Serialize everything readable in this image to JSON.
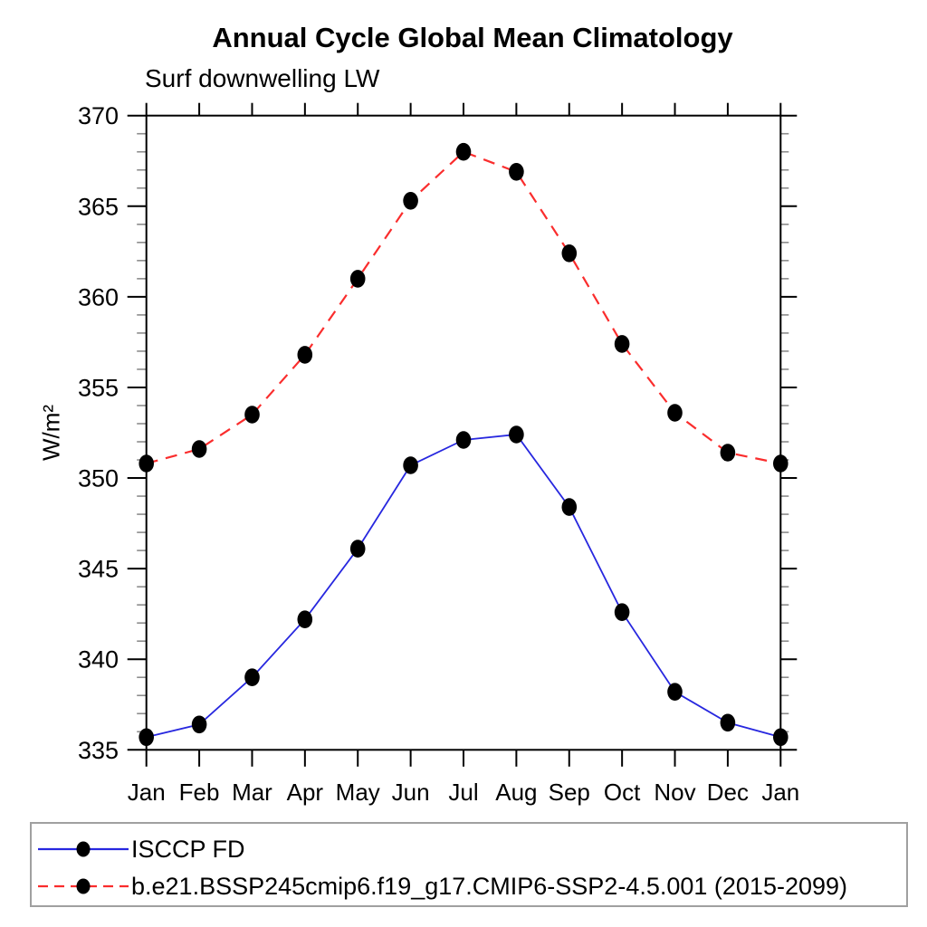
{
  "title": "Annual Cycle Global Mean Climatology",
  "subtitle": "Surf downwelling LW",
  "y_axis_title": "W/m²",
  "legend": {
    "items": [
      {
        "label": "ISCCP FD",
        "color": "#2727df",
        "dashed": false,
        "marker_color": "#000000"
      },
      {
        "label": "b.e21.BSSP245cmip6.f19_g17.CMIP6-SSP2-4.5.001 (2015-2099)",
        "color": "#fa2d2d",
        "dashed": true,
        "marker_color": "#000000"
      }
    ]
  },
  "chart_data": {
    "type": "line",
    "title": "Annual Cycle Global Mean Climatology",
    "subtitle": "Surf downwelling LW",
    "ylabel": "W/m²",
    "xlabel": "",
    "categories": [
      "Jan",
      "Feb",
      "Mar",
      "Apr",
      "May",
      "Jun",
      "Jul",
      "Aug",
      "Sep",
      "Oct",
      "Nov",
      "Dec",
      "Jan"
    ],
    "series": [
      {
        "name": "ISCCP FD",
        "color": "#2727df",
        "line_style": "solid",
        "marker": "filled-circle",
        "values": [
          335.7,
          336.4,
          339.0,
          342.2,
          346.1,
          350.7,
          352.1,
          352.4,
          348.4,
          342.6,
          338.2,
          336.5,
          335.7
        ]
      },
      {
        "name": "b.e21.BSSP245cmip6.f19_g17.CMIP6-SSP2-4.5.001 (2015-2099)",
        "color": "#fa2d2d",
        "line_style": "dashed",
        "marker": "filled-circle",
        "values": [
          350.8,
          351.6,
          353.5,
          356.8,
          361.0,
          365.3,
          368.0,
          366.9,
          362.4,
          357.4,
          353.6,
          351.4,
          350.8
        ]
      }
    ],
    "ylim": [
      335,
      370
    ],
    "ytick_major_step": 5,
    "ytick_minor_step": 1,
    "ytick_labels": [
      "335",
      "340",
      "345",
      "350",
      "355",
      "360",
      "365",
      "370"
    ],
    "grid": false,
    "legend_position": "bottom-left-box"
  }
}
